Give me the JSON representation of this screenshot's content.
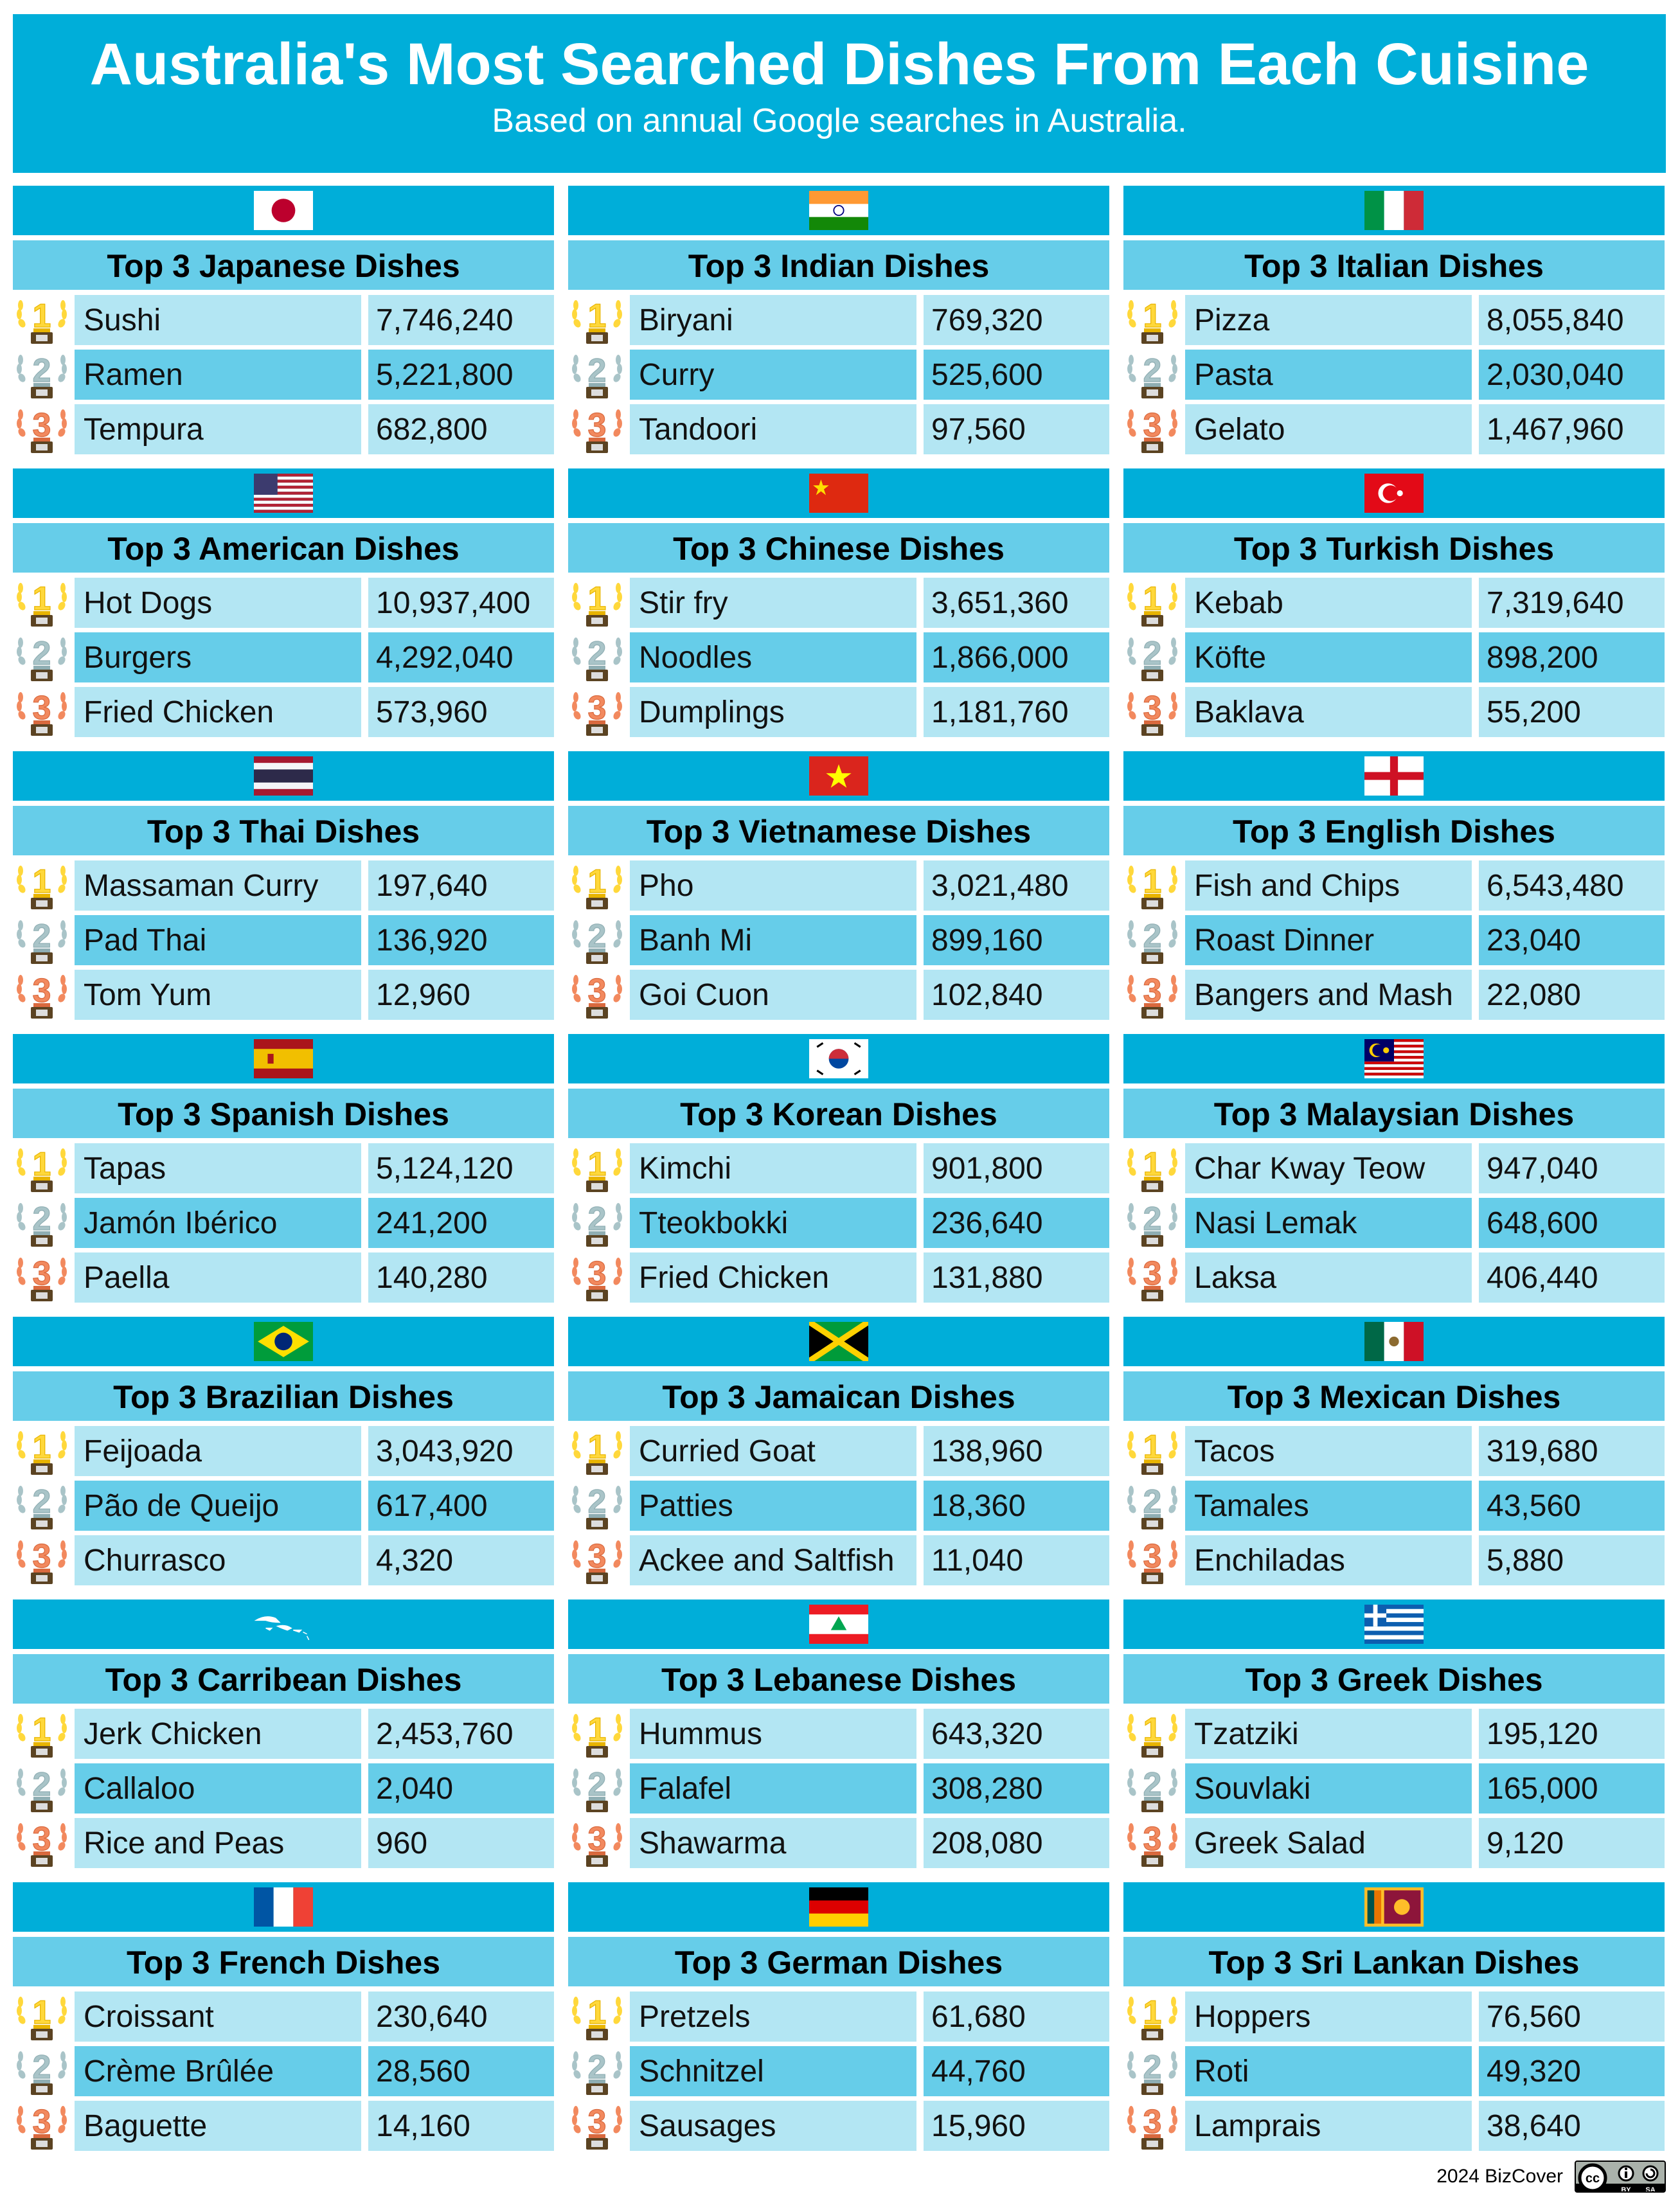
{
  "header": {
    "title": "Australia's Most Searched Dishes From Each Cuisine",
    "subtitle": "Based on annual Google searches in Australia."
  },
  "colors": {
    "banner": "#00AED9",
    "title_bar": "#66CDE9",
    "row_light": "#B3E6F3",
    "row_mid": "#66CDE9",
    "gold": "#FFD83B",
    "silver": "#A9C4C8",
    "bronze": "#F2895E"
  },
  "trophy_icons": [
    "gold-trophy-1-icon",
    "silver-trophy-2-icon",
    "bronze-trophy-3-icon"
  ],
  "cuisines": [
    {
      "flag": "japan",
      "title": "Top 3 Japanese Dishes",
      "dishes": [
        {
          "name": "Sushi",
          "searches": "7,746,240"
        },
        {
          "name": "Ramen",
          "searches": "5,221,800"
        },
        {
          "name": "Tempura",
          "searches": "682,800"
        }
      ]
    },
    {
      "flag": "india",
      "title": "Top 3 Indian Dishes",
      "dishes": [
        {
          "name": "Biryani",
          "searches": "769,320"
        },
        {
          "name": "Curry",
          "searches": "525,600"
        },
        {
          "name": "Tandoori",
          "searches": "97,560"
        }
      ]
    },
    {
      "flag": "italy",
      "title": "Top 3 Italian Dishes",
      "dishes": [
        {
          "name": "Pizza",
          "searches": "8,055,840"
        },
        {
          "name": "Pasta",
          "searches": "2,030,040"
        },
        {
          "name": "Gelato",
          "searches": "1,467,960"
        }
      ]
    },
    {
      "flag": "usa",
      "title": "Top 3 American Dishes",
      "dishes": [
        {
          "name": "Hot Dogs",
          "searches": "10,937,400"
        },
        {
          "name": "Burgers",
          "searches": "4,292,040"
        },
        {
          "name": "Fried Chicken",
          "searches": "573,960"
        }
      ]
    },
    {
      "flag": "china",
      "title": "Top 3 Chinese Dishes",
      "dishes": [
        {
          "name": "Stir fry",
          "searches": "3,651,360"
        },
        {
          "name": "Noodles",
          "searches": "1,866,000"
        },
        {
          "name": "Dumplings",
          "searches": "1,181,760"
        }
      ]
    },
    {
      "flag": "turkey",
      "title": "Top 3 Turkish Dishes",
      "dishes": [
        {
          "name": "Kebab",
          "searches": "7,319,640"
        },
        {
          "name": "Köfte",
          "searches": "898,200"
        },
        {
          "name": "Baklava",
          "searches": "55,200"
        }
      ]
    },
    {
      "flag": "thailand",
      "title": "Top 3 Thai Dishes",
      "dishes": [
        {
          "name": "Massaman Curry",
          "searches": "197,640"
        },
        {
          "name": "Pad Thai",
          "searches": "136,920"
        },
        {
          "name": "Tom Yum",
          "searches": "12,960"
        }
      ]
    },
    {
      "flag": "vietnam",
      "title": "Top 3 Vietnamese Dishes",
      "dishes": [
        {
          "name": "Pho",
          "searches": "3,021,480"
        },
        {
          "name": "Banh Mi",
          "searches": "899,160"
        },
        {
          "name": "Goi Cuon",
          "searches": "102,840"
        }
      ]
    },
    {
      "flag": "england",
      "title": "Top 3 English Dishes",
      "dishes": [
        {
          "name": "Fish and Chips",
          "searches": "6,543,480"
        },
        {
          "name": "Roast Dinner",
          "searches": "23,040"
        },
        {
          "name": "Bangers and Mash",
          "searches": "22,080"
        }
      ]
    },
    {
      "flag": "spain",
      "title": "Top 3 Spanish Dishes",
      "dishes": [
        {
          "name": "Tapas",
          "searches": "5,124,120"
        },
        {
          "name": "Jamón Ibérico",
          "searches": "241,200"
        },
        {
          "name": "Paella",
          "searches": "140,280"
        }
      ]
    },
    {
      "flag": "korea",
      "title": "Top 3 Korean Dishes",
      "dishes": [
        {
          "name": "Kimchi",
          "searches": "901,800"
        },
        {
          "name": "Tteokbokki",
          "searches": "236,640"
        },
        {
          "name": "Fried Chicken",
          "searches": "131,880"
        }
      ]
    },
    {
      "flag": "malaysia",
      "title": "Top 3 Malaysian Dishes",
      "dishes": [
        {
          "name": "Char Kway Teow",
          "searches": "947,040"
        },
        {
          "name": "Nasi Lemak",
          "searches": "648,600"
        },
        {
          "name": "Laksa",
          "searches": "406,440"
        }
      ]
    },
    {
      "flag": "brazil",
      "title": "Top 3 Brazilian Dishes",
      "dishes": [
        {
          "name": "Feijoada",
          "searches": "3,043,920"
        },
        {
          "name": "Pão de Queijo",
          "searches": "617,400"
        },
        {
          "name": "Churrasco",
          "searches": "4,320"
        }
      ]
    },
    {
      "flag": "jamaica",
      "title": "Top 3 Jamaican Dishes",
      "dishes": [
        {
          "name": "Curried Goat",
          "searches": "138,960"
        },
        {
          "name": "Patties",
          "searches": "18,360"
        },
        {
          "name": "Ackee and Saltfish",
          "searches": "11,040"
        }
      ]
    },
    {
      "flag": "mexico",
      "title": "Top 3 Mexican Dishes",
      "dishes": [
        {
          "name": "Tacos",
          "searches": "319,680"
        },
        {
          "name": "Tamales",
          "searches": "43,560"
        },
        {
          "name": "Enchiladas",
          "searches": "5,880"
        }
      ]
    },
    {
      "flag": "caribbean",
      "title": "Top 3 Carribean Dishes",
      "dishes": [
        {
          "name": "Jerk Chicken",
          "searches": "2,453,760"
        },
        {
          "name": "Callaloo",
          "searches": "2,040"
        },
        {
          "name": "Rice and Peas",
          "searches": "960"
        }
      ]
    },
    {
      "flag": "lebanon",
      "title": "Top 3 Lebanese Dishes",
      "dishes": [
        {
          "name": "Hummus",
          "searches": "643,320"
        },
        {
          "name": "Falafel",
          "searches": "308,280"
        },
        {
          "name": "Shawarma",
          "searches": "208,080"
        }
      ]
    },
    {
      "flag": "greece",
      "title": "Top 3 Greek Dishes",
      "dishes": [
        {
          "name": "Tzatziki",
          "searches": "195,120"
        },
        {
          "name": "Souvlaki",
          "searches": "165,000"
        },
        {
          "name": "Greek Salad",
          "searches": "9,120"
        }
      ]
    },
    {
      "flag": "france",
      "title": "Top 3 French Dishes",
      "dishes": [
        {
          "name": "Croissant",
          "searches": "230,640"
        },
        {
          "name": "Crème Brûlée",
          "searches": "28,560"
        },
        {
          "name": "Baguette",
          "searches": "14,160"
        }
      ]
    },
    {
      "flag": "germany",
      "title": "Top 3 German Dishes",
      "dishes": [
        {
          "name": "Pretzels",
          "searches": "61,680"
        },
        {
          "name": "Schnitzel",
          "searches": "44,760"
        },
        {
          "name": "Sausages",
          "searches": "15,960"
        }
      ]
    },
    {
      "flag": "sri-lanka",
      "title": "Top 3 Sri Lankan Dishes",
      "dishes": [
        {
          "name": "Hoppers",
          "searches": "76,560"
        },
        {
          "name": "Roti",
          "searches": "49,320"
        },
        {
          "name": "Lamprais",
          "searches": "38,640"
        }
      ]
    }
  ],
  "footer": {
    "credit": "2024 BizCover",
    "license": "CC BY SA",
    "license_cc": "cc",
    "license_by": "BY",
    "license_sa": "SA"
  }
}
